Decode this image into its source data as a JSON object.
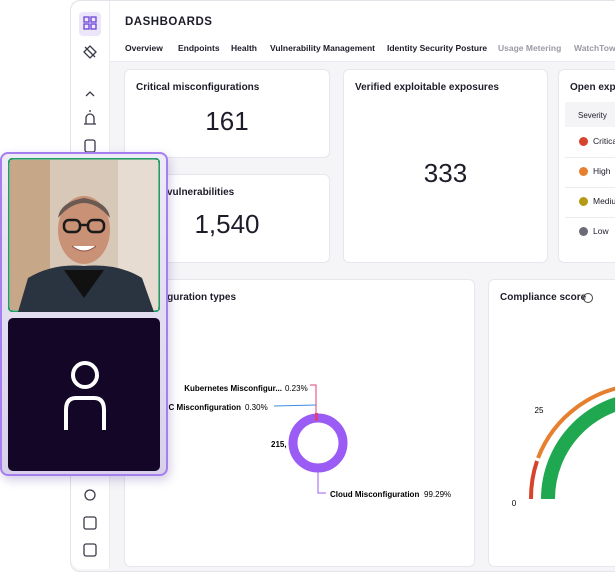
{
  "header": {
    "title": "DASHBOARDS"
  },
  "tabs": [
    "Overview",
    "Endpoints",
    "Health",
    "Vulnerability Management",
    "Identity Security Posture",
    "Usage Metering",
    "WatchTow"
  ],
  "cards": {
    "critical_misconfigurations": {
      "title": "Critical misconfigurations",
      "value": "161"
    },
    "vulnerabilities": {
      "title": "vulnerabilities",
      "value": "1,540"
    },
    "verified_exposures": {
      "title": "Verified exploitable exposures",
      "value": "333"
    },
    "open_exposures": {
      "title": "Open expo",
      "column": "Severity",
      "rows": [
        "Critica",
        "High",
        "Mediu",
        "Low"
      ]
    }
  },
  "misconfiguration_types": {
    "title": "figuration types",
    "center": "215,",
    "slices": [
      {
        "label": "Kubernetes Misconfigur...",
        "value_label": "0.23%"
      },
      {
        "label": "C Misconfiguration",
        "value_label": "0.30%"
      },
      {
        "label": "Cloud Misconfiguration",
        "value_label": "99.29%"
      }
    ]
  },
  "compliance_score": {
    "title": "Compliance score",
    "ticks": [
      "25",
      "0"
    ]
  }
}
